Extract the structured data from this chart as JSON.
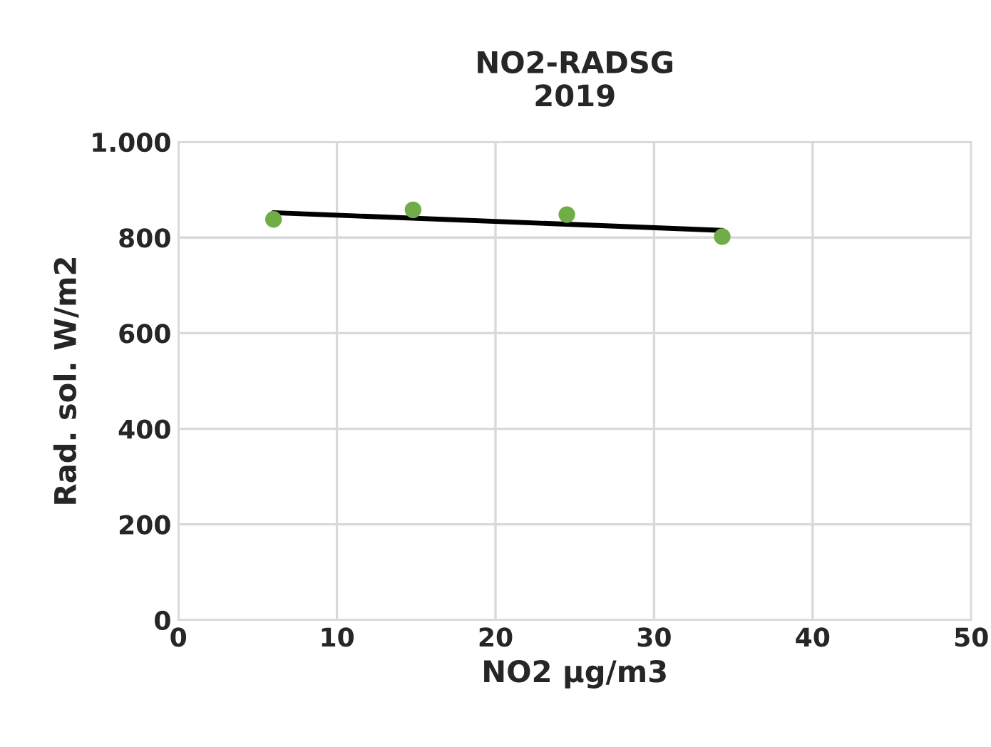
{
  "chart_data": {
    "type": "scatter",
    "title": "NO2-RADSG\n2019",
    "xlabel": "NO2 µg/m3",
    "ylabel": "Rad. sol. W/m2",
    "series": [
      {
        "color": "#70ad47",
        "x": [
          6.0,
          14.8,
          24.5,
          34.3
        ],
        "values": [
          838,
          858,
          848,
          802
        ],
        "marker": "circle"
      },
      {
        "type": "line",
        "color": "#000000",
        "x": [
          6.0,
          34.3
        ],
        "values": [
          852,
          815
        ],
        "marker": "none",
        "line_style": "solid"
      }
    ],
    "xlim": [
      0,
      50
    ],
    "xticks": [
      0,
      10,
      20,
      30,
      40,
      50
    ],
    "ylim": [
      0,
      1000
    ],
    "yticks": [
      0,
      200,
      400,
      600,
      800,
      {
        "value": 1000,
        "label": "1.000"
      }
    ],
    "grid": true,
    "legend": false
  }
}
